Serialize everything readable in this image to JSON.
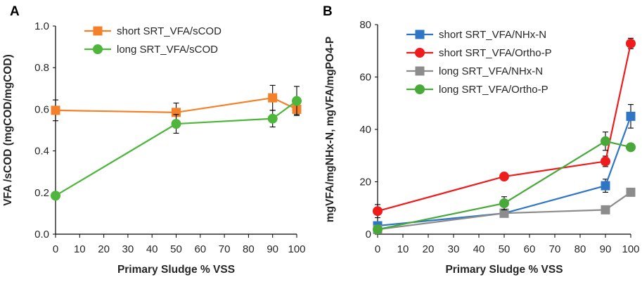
{
  "chart_data": [
    {
      "panel_label": "A",
      "type": "line",
      "xlabel": "Primary Sludge % VSS",
      "ylabel": "VFA /sCOD (mgCOD/mgCOD)",
      "xlim": [
        0,
        100
      ],
      "ylim": [
        0,
        1.0
      ],
      "xticks": [
        0,
        10,
        20,
        30,
        40,
        50,
        60,
        70,
        80,
        90,
        100
      ],
      "yticks": [
        0.0,
        0.2,
        0.4,
        0.6,
        0.8,
        1.0
      ],
      "ytick_labels": [
        "0.0",
        "0.2",
        "0.4",
        "0.6",
        "0.8",
        "1.0"
      ],
      "legend_position": "top-center",
      "series": [
        {
          "name": "short SRT_VFA/sCOD",
          "color": "#F4812A",
          "marker": "square",
          "x": [
            0,
            50,
            90,
            100
          ],
          "values": [
            0.595,
            0.585,
            0.655,
            0.6
          ],
          "err": [
            0.05,
            0.045,
            0.06,
            0.025
          ]
        },
        {
          "name": "long SRT_VFA/sCOD",
          "color": "#4DB63B",
          "marker": "circle",
          "x": [
            0,
            50,
            90,
            100
          ],
          "values": [
            0.185,
            0.53,
            0.555,
            0.64
          ],
          "err": [
            0.0,
            0.045,
            0.04,
            0.07
          ]
        }
      ]
    },
    {
      "panel_label": "B",
      "type": "line",
      "xlabel": "Primary Sludge % VSS",
      "ylabel": "mgVFA/mgNHx-N, mgVFA/mgPO4-P",
      "xlim": [
        0,
        100
      ],
      "ylim": [
        0,
        80
      ],
      "xticks": [
        0,
        10,
        20,
        30,
        40,
        50,
        60,
        70,
        80,
        90,
        100
      ],
      "yticks": [
        0,
        20,
        40,
        60,
        80
      ],
      "ytick_labels": [
        "0",
        "20",
        "40",
        "60",
        "80"
      ],
      "legend_position": "top-left",
      "series": [
        {
          "name": "short SRT_VFA/NHx-N",
          "color": "#2E75C6",
          "marker": "square",
          "x": [
            0,
            50,
            90,
            100
          ],
          "values": [
            3.2,
            8.0,
            18.5,
            45.0
          ],
          "err": [
            0.4,
            0.5,
            2.5,
            4.5
          ]
        },
        {
          "name": "short SRT_VFA/Ortho-P",
          "color": "#EE1C1C",
          "marker": "circle",
          "x": [
            0,
            50,
            90,
            100
          ],
          "values": [
            8.8,
            22.0,
            27.8,
            72.8
          ],
          "err": [
            2.5,
            1.0,
            2.0,
            2.0
          ]
        },
        {
          "name": "long SRT_VFA/NHx-N",
          "color": "#8C8C8C",
          "marker": "square",
          "x": [
            0,
            50,
            90,
            100
          ],
          "values": [
            1.8,
            8.0,
            9.3,
            16.0
          ],
          "err": [
            0.3,
            0.6,
            1.0,
            1.0
          ]
        },
        {
          "name": "long SRT_VFA/Ortho-P",
          "color": "#48A93A",
          "marker": "circle",
          "x": [
            0,
            50,
            90,
            100
          ],
          "values": [
            1.8,
            11.8,
            35.5,
            33.2
          ],
          "err": [
            0.3,
            2.5,
            3.5,
            1.0
          ]
        }
      ]
    }
  ]
}
